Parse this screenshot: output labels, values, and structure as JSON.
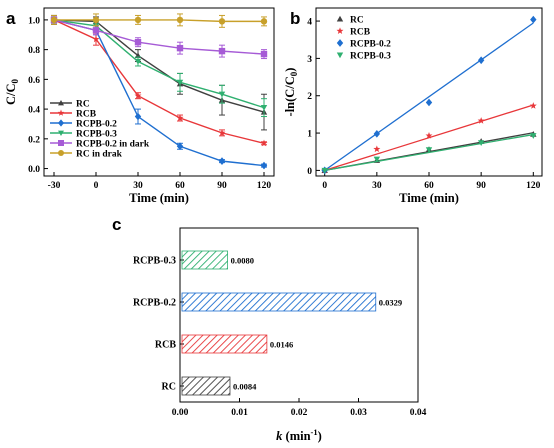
{
  "colors": {
    "RC": "#404040",
    "RCB": "#e8373a",
    "RCPB-0.2": "#1f6fd0",
    "RCPB-0.3": "#2fb070",
    "RCPB-0.2 in dark": "#a65bd6",
    "RC in drak": "#c8a02a"
  },
  "chart_data": [
    {
      "panel": "a",
      "type": "line",
      "xlabel": "Time (min)",
      "ylabel": "C/C0",
      "x": [
        -30,
        0,
        30,
        60,
        90,
        120
      ],
      "xticks": [
        "-30",
        "0",
        "30",
        "60",
        "90",
        "120"
      ],
      "ylim": [
        -0.05,
        1.08
      ],
      "yticks": [
        "0.0",
        "0.2",
        "0.4",
        "0.6",
        "0.8",
        "1.0"
      ],
      "legend_position": "bottom-left",
      "series": [
        {
          "name": "RC",
          "values": [
            1.0,
            0.99,
            0.76,
            0.57,
            0.46,
            0.38
          ],
          "errors": [
            0.03,
            0.03,
            0.04,
            0.07,
            0.1,
            0.12
          ],
          "marker": "triangle-up"
        },
        {
          "name": "RCB",
          "values": [
            1.0,
            0.87,
            0.49,
            0.34,
            0.24,
            0.17
          ],
          "errors": [
            0.02,
            0.04,
            0.02,
            0.02,
            0.02,
            0.01
          ],
          "marker": "star"
        },
        {
          "name": "RCPB-0.2",
          "values": [
            1.0,
            0.93,
            0.35,
            0.15,
            0.05,
            0.02
          ],
          "errors": [
            0.02,
            0.03,
            0.05,
            0.02,
            0.01,
            0.01
          ],
          "marker": "diamond"
        },
        {
          "name": "RCPB-0.3",
          "values": [
            1.0,
            0.96,
            0.72,
            0.58,
            0.5,
            0.41
          ],
          "errors": [
            0.02,
            0.03,
            0.03,
            0.06,
            0.06,
            0.06
          ],
          "marker": "triangle-down"
        },
        {
          "name": "RCPB-0.2 in dark",
          "values": [
            1.0,
            0.93,
            0.85,
            0.81,
            0.79,
            0.77
          ],
          "errors": [
            0.02,
            0.03,
            0.03,
            0.04,
            0.04,
            0.03
          ],
          "marker": "square"
        },
        {
          "name": "RC in drak",
          "values": [
            1.0,
            1.0,
            1.0,
            1.0,
            0.99,
            0.99
          ],
          "errors": [
            0.03,
            0.04,
            0.03,
            0.04,
            0.04,
            0.03
          ],
          "marker": "circle"
        }
      ]
    },
    {
      "panel": "b",
      "type": "scatter",
      "xlabel": "Time (min)",
      "ylabel": "-ln(C/C0)",
      "x": [
        0,
        30,
        60,
        90,
        120
      ],
      "xticks": [
        "0",
        "30",
        "60",
        "90",
        "120"
      ],
      "xlim": [
        -5,
        125
      ],
      "ylim": [
        -0.15,
        4.35
      ],
      "yticks": [
        "0",
        "1",
        "2",
        "3",
        "4"
      ],
      "legend_position": "top-left",
      "series": [
        {
          "name": "RC",
          "values": [
            0,
            0.27,
            0.56,
            0.78,
            0.97
          ],
          "slope": 0.0084,
          "marker": "triangle-up"
        },
        {
          "name": "RCB",
          "values": [
            0,
            0.57,
            0.93,
            1.33,
            1.73
          ],
          "slope": 0.0146,
          "marker": "star"
        },
        {
          "name": "RCPB-0.2",
          "values": [
            0,
            0.98,
            1.82,
            2.95,
            4.04
          ],
          "slope": 0.0329,
          "marker": "diamond"
        },
        {
          "name": "RCPB-0.3",
          "values": [
            0,
            0.3,
            0.55,
            0.74,
            0.93
          ],
          "slope": 0.008,
          "marker": "triangle-down"
        }
      ]
    },
    {
      "panel": "c",
      "type": "bar",
      "orientation": "horizontal",
      "xlabel": "k (min-1)",
      "categories": [
        "RC",
        "RCB",
        "RCPB-0.2",
        "RCPB-0.3"
      ],
      "values": [
        0.0084,
        0.0146,
        0.0329,
        0.008
      ],
      "labels": [
        "0.0084",
        "0.0146",
        "0.0329",
        "0.0080"
      ],
      "xlim": [
        0,
        0.04
      ],
      "xticks": [
        "0.00",
        "0.01",
        "0.02",
        "0.03",
        "0.04"
      ]
    }
  ]
}
